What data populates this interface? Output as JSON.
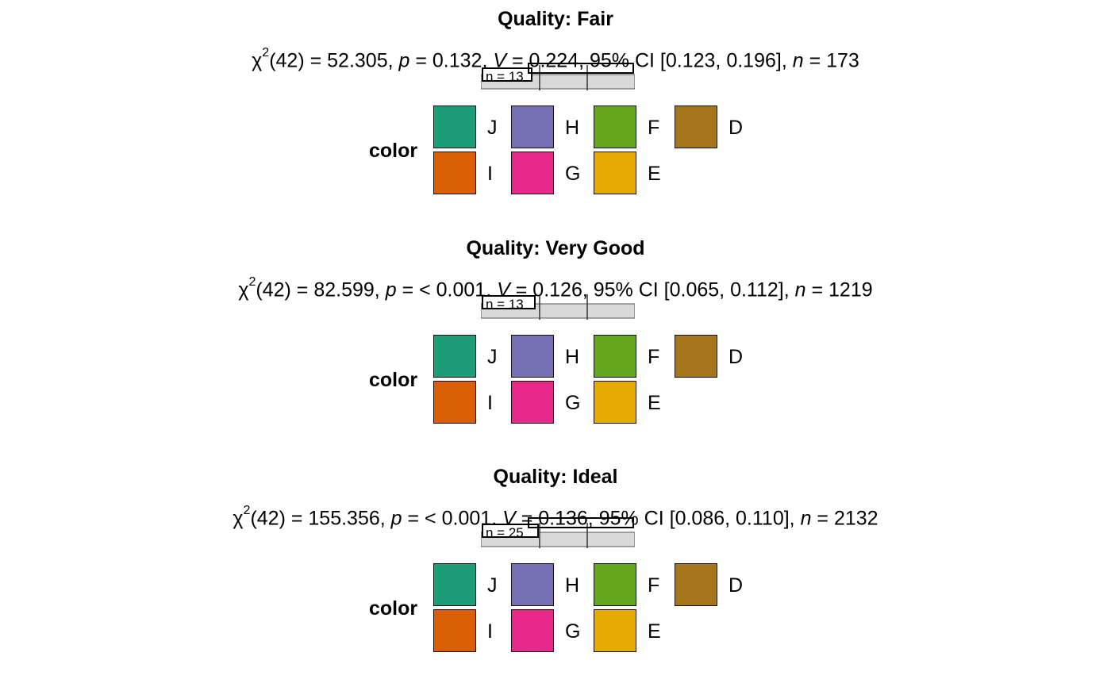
{
  "panels": [
    {
      "title": "Quality: Fair",
      "stats": {
        "chi_sym": "χ",
        "chi_sup": "2",
        "chi_df": "(42) = 52.305, ",
        "p_sym": "p",
        "p_val": " = 0.132, ",
        "v_sym": "V",
        "v_val": " = 0.224, 95% CI [0.123, 0.196], ",
        "n_sym": "n",
        "n_val": " = 173"
      },
      "strip_label": "n = 13"
    },
    {
      "title": "Quality: Very Good",
      "stats": {
        "chi_sym": "χ",
        "chi_sup": "2",
        "chi_df": "(42) = 82.599, ",
        "p_sym": "p",
        "p_val": " = < 0.001, ",
        "v_sym": "V",
        "v_val": " = 0.126, 95% CI [0.065, 0.112], ",
        "n_sym": "n",
        "n_val": " = 1219"
      },
      "strip_label": "n = 13"
    },
    {
      "title": "Quality: Ideal",
      "stats": {
        "chi_sym": "χ",
        "chi_sup": "2",
        "chi_df": "(42) = 155.356, ",
        "p_sym": "p",
        "p_val": " = < 0.001, ",
        "v_sym": "V",
        "v_val": " = 0.136, 95% CI [0.086, 0.110], ",
        "n_sym": "n",
        "n_val": " = 2132"
      },
      "strip_label": "n = 25"
    }
  ],
  "legend": {
    "title": "color",
    "keys": [
      {
        "label": "J",
        "color": "#1B9E77"
      },
      {
        "label": "I",
        "color": "#D95F02"
      },
      {
        "label": "H",
        "color": "#7570B3"
      },
      {
        "label": "G",
        "color": "#E7298A"
      },
      {
        "label": "F",
        "color": "#66A61E"
      },
      {
        "label": "E",
        "color": "#E6AB02"
      },
      {
        "label": "D",
        "color": "#A6761D"
      }
    ]
  },
  "chart_data": [
    {
      "type": "bar",
      "title": "Quality: Fair",
      "subtitle": "χ2(42) = 52.305, p = 0.132, V = 0.224, 95% CI [0.123, 0.196], n = 173",
      "categories": [
        "J",
        "I",
        "H",
        "G",
        "F",
        "E",
        "D"
      ],
      "legend_title": "color",
      "legend_position": "bottom"
    },
    {
      "type": "bar",
      "title": "Quality: Very Good",
      "subtitle": "χ2(42) = 82.599, p = < 0.001, V = 0.126, 95% CI [0.065, 0.112], n = 1219",
      "categories": [
        "J",
        "I",
        "H",
        "G",
        "F",
        "E",
        "D"
      ],
      "legend_title": "color",
      "legend_position": "bottom"
    },
    {
      "type": "bar",
      "title": "Quality: Ideal",
      "subtitle": "χ2(42) = 155.356, p = < 0.001, V = 0.136, 95% CI [0.086, 0.110], n = 2132",
      "categories": [
        "J",
        "I",
        "H",
        "G",
        "F",
        "E",
        "D"
      ],
      "legend_title": "color",
      "legend_position": "bottom"
    }
  ]
}
